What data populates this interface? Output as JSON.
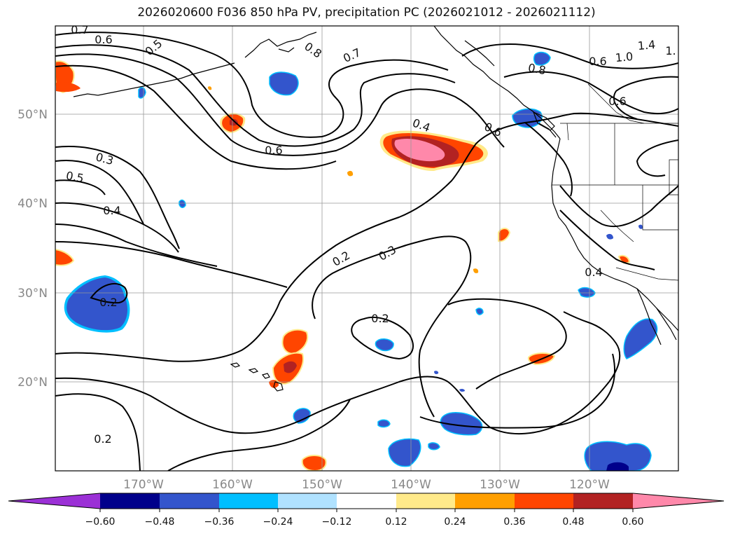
{
  "title": "2026020600 F036 850 hPa PV, precipitation PC (2026021012 - 2026021112)",
  "map": {
    "lat_labels": [
      "50°N",
      "40°N",
      "30°N",
      "20°N"
    ],
    "lon_labels": [
      "170°W",
      "160°W",
      "150°W",
      "140°W",
      "130°W",
      "120°W"
    ],
    "contour_labels": [
      "0.7",
      "0.6",
      "0.5",
      "0.8",
      "0.7",
      "1.4",
      "1.",
      "0.8",
      "1.0",
      "0.6",
      "0.6",
      "0.4",
      "0.6",
      "0.3",
      "0.5",
      "0.4",
      "0.2",
      "0.3",
      "0.2",
      "0.2",
      "0.4",
      "0.2",
      "0.6"
    ]
  },
  "colorbar": {
    "ticks": [
      "−0.60",
      "−0.48",
      "−0.36",
      "−0.24",
      "−0.12",
      "0.12",
      "0.24",
      "0.36",
      "0.48",
      "0.60"
    ],
    "colors": [
      "#9b30d6",
      "#00008b",
      "#3355cc",
      "#00bfff",
      "#b0e2ff",
      "#ffffff",
      "#ffea8a",
      "#ff9f00",
      "#ff4500",
      "#b22222",
      "#ff88aa"
    ]
  }
}
